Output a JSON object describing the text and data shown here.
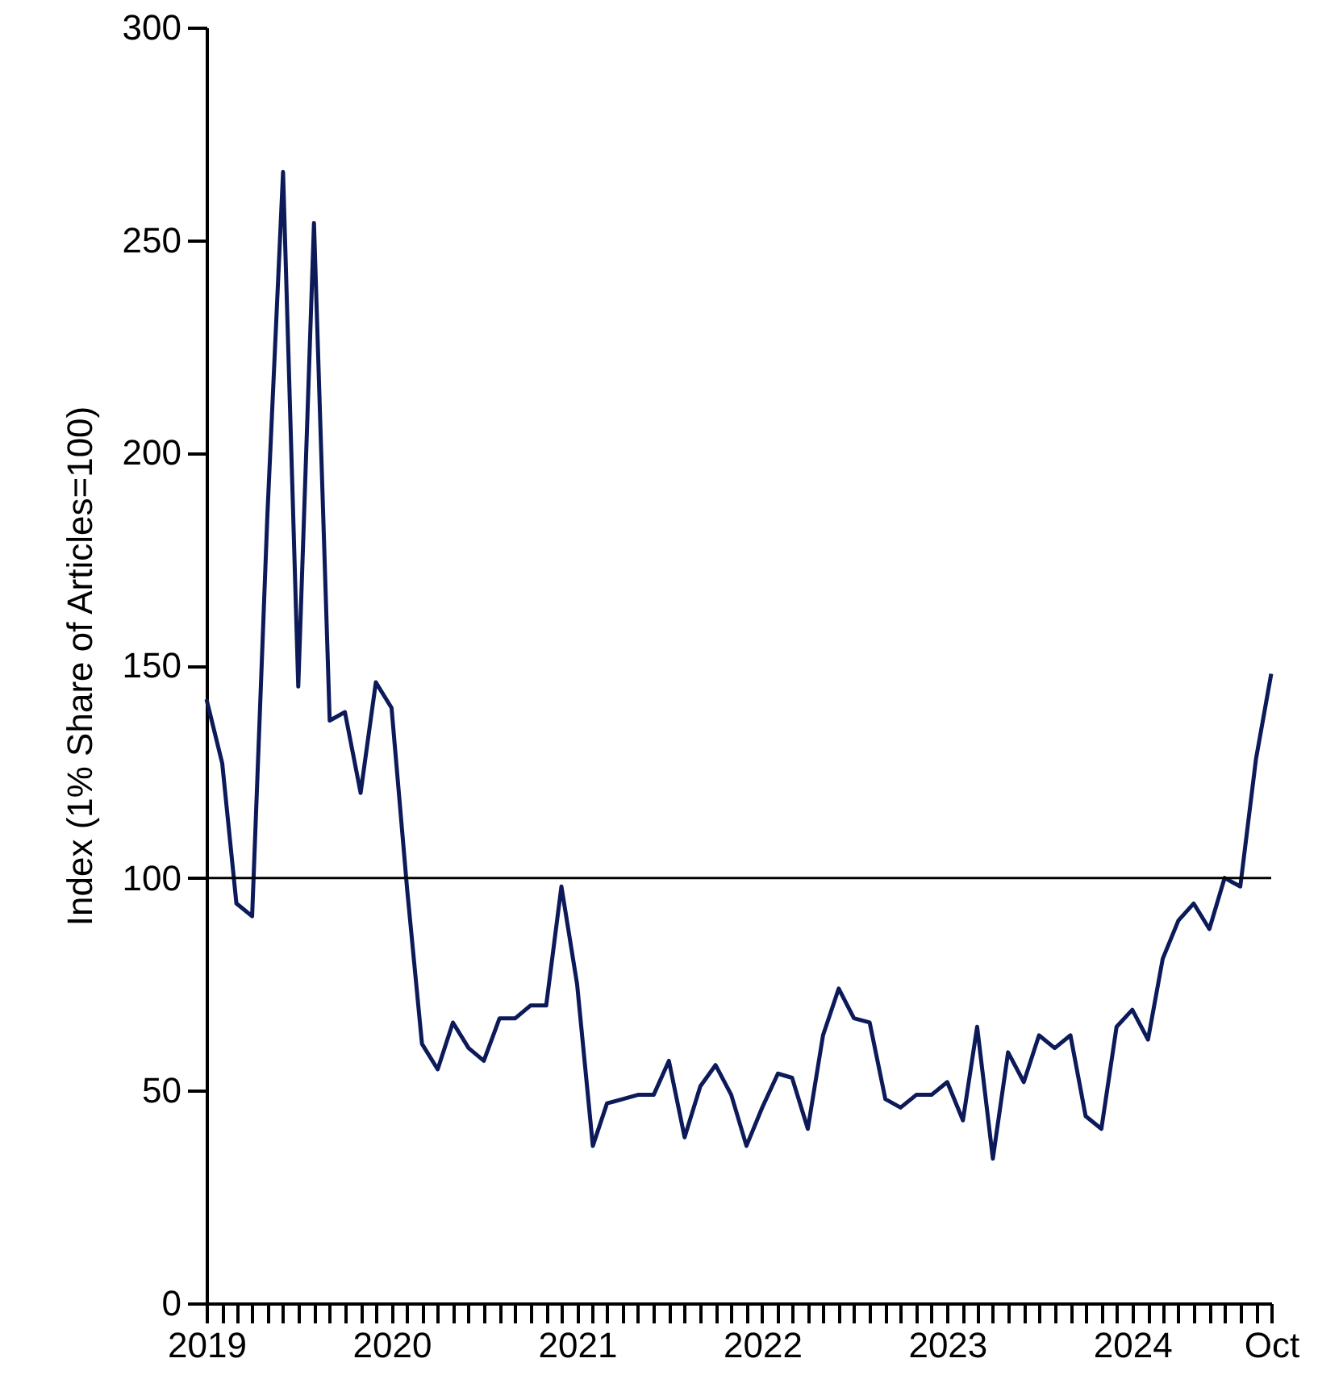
{
  "chart_data": {
    "type": "line",
    "ylabel": "Index (1% Share of Articles=100)",
    "x": [
      "2019-01",
      "2019-02",
      "2019-03",
      "2019-04",
      "2019-05",
      "2019-06",
      "2019-07",
      "2019-08",
      "2019-09",
      "2019-10",
      "2019-11",
      "2019-12",
      "2020-01",
      "2020-02",
      "2020-03",
      "2020-04",
      "2020-05",
      "2020-06",
      "2020-07",
      "2020-08",
      "2020-09",
      "2020-10",
      "2020-11",
      "2020-12",
      "2021-01",
      "2021-02",
      "2021-03",
      "2021-04",
      "2021-05",
      "2021-06",
      "2021-07",
      "2021-08",
      "2021-09",
      "2021-10",
      "2021-11",
      "2021-12",
      "2022-01",
      "2022-02",
      "2022-03",
      "2022-04",
      "2022-05",
      "2022-06",
      "2022-07",
      "2022-08",
      "2022-09",
      "2022-10",
      "2022-11",
      "2022-12",
      "2023-01",
      "2023-02",
      "2023-03",
      "2023-04",
      "2023-05",
      "2023-06",
      "2023-07",
      "2023-08",
      "2023-09",
      "2023-10",
      "2023-11",
      "2023-12",
      "2024-01",
      "2024-02",
      "2024-03",
      "2024-04",
      "2024-05",
      "2024-06",
      "2024-07",
      "2024-08",
      "2024-09",
      "2024-10"
    ],
    "series": [
      {
        "color": "#0c1a5a",
        "values": [
          142,
          127,
          94,
          91,
          185,
          266,
          145,
          254,
          137,
          139,
          120,
          146,
          140,
          97,
          61,
          55,
          66,
          60,
          57,
          67,
          67,
          70,
          70,
          98,
          75,
          37,
          47,
          48,
          49,
          49,
          57,
          39,
          51,
          56,
          49,
          37,
          46,
          54,
          53,
          41,
          63,
          74,
          67,
          66,
          48,
          46,
          49,
          49,
          52,
          43,
          65,
          34,
          59,
          52,
          63,
          60,
          63,
          44,
          41,
          65,
          69,
          62,
          81,
          90,
          94,
          88,
          100,
          98,
          128,
          148
        ]
      }
    ],
    "xlim": [
      "2019-01",
      "2024-10"
    ],
    "xticks": [
      {
        "value": "2019-01",
        "label": "2019"
      },
      {
        "value": "2019-02",
        "label": null
      },
      {
        "value": "2019-03",
        "label": null
      },
      {
        "value": "2019-04",
        "label": null
      },
      {
        "value": "2019-05",
        "label": null
      },
      {
        "value": "2019-06",
        "label": null
      },
      {
        "value": "2019-07",
        "label": null
      },
      {
        "value": "2019-08",
        "label": null
      },
      {
        "value": "2019-09",
        "label": null
      },
      {
        "value": "2019-10",
        "label": null
      },
      {
        "value": "2019-11",
        "label": null
      },
      {
        "value": "2019-12",
        "label": null
      },
      {
        "value": "2020-01",
        "label": "2020"
      },
      {
        "value": "2020-02",
        "label": null
      },
      {
        "value": "2020-03",
        "label": null
      },
      {
        "value": "2020-04",
        "label": null
      },
      {
        "value": "2020-05",
        "label": null
      },
      {
        "value": "2020-06",
        "label": null
      },
      {
        "value": "2020-07",
        "label": null
      },
      {
        "value": "2020-08",
        "label": null
      },
      {
        "value": "2020-09",
        "label": null
      },
      {
        "value": "2020-10",
        "label": null
      },
      {
        "value": "2020-11",
        "label": null
      },
      {
        "value": "2020-12",
        "label": null
      },
      {
        "value": "2021-01",
        "label": "2021"
      },
      {
        "value": "2021-02",
        "label": null
      },
      {
        "value": "2021-03",
        "label": null
      },
      {
        "value": "2021-04",
        "label": null
      },
      {
        "value": "2021-05",
        "label": null
      },
      {
        "value": "2021-06",
        "label": null
      },
      {
        "value": "2021-07",
        "label": null
      },
      {
        "value": "2021-08",
        "label": null
      },
      {
        "value": "2021-09",
        "label": null
      },
      {
        "value": "2021-10",
        "label": null
      },
      {
        "value": "2021-11",
        "label": null
      },
      {
        "value": "2021-12",
        "label": null
      },
      {
        "value": "2022-01",
        "label": "2022"
      },
      {
        "value": "2022-02",
        "label": null
      },
      {
        "value": "2022-03",
        "label": null
      },
      {
        "value": "2022-04",
        "label": null
      },
      {
        "value": "2022-05",
        "label": null
      },
      {
        "value": "2022-06",
        "label": null
      },
      {
        "value": "2022-07",
        "label": null
      },
      {
        "value": "2022-08",
        "label": null
      },
      {
        "value": "2022-09",
        "label": null
      },
      {
        "value": "2022-10",
        "label": null
      },
      {
        "value": "2022-11",
        "label": null
      },
      {
        "value": "2022-12",
        "label": null
      },
      {
        "value": "2023-01",
        "label": "2023"
      },
      {
        "value": "2023-02",
        "label": null
      },
      {
        "value": "2023-03",
        "label": null
      },
      {
        "value": "2023-04",
        "label": null
      },
      {
        "value": "2023-05",
        "label": null
      },
      {
        "value": "2023-06",
        "label": null
      },
      {
        "value": "2023-07",
        "label": null
      },
      {
        "value": "2023-08",
        "label": null
      },
      {
        "value": "2023-09",
        "label": null
      },
      {
        "value": "2023-10",
        "label": null
      },
      {
        "value": "2023-11",
        "label": null
      },
      {
        "value": "2023-12",
        "label": null
      },
      {
        "value": "2024-01",
        "label": "2024"
      },
      {
        "value": "2024-02",
        "label": null
      },
      {
        "value": "2024-03",
        "label": null
      },
      {
        "value": "2024-04",
        "label": null
      },
      {
        "value": "2024-05",
        "label": null
      },
      {
        "value": "2024-06",
        "label": null
      },
      {
        "value": "2024-07",
        "label": null
      },
      {
        "value": "2024-08",
        "label": null
      },
      {
        "value": "2024-09",
        "label": null
      },
      {
        "value": "2024-10",
        "label": "Oct"
      }
    ],
    "ylim": [
      0,
      300
    ],
    "yticks": [
      0,
      50,
      100,
      150,
      200,
      250,
      300
    ],
    "ref_lines": [
      {
        "axis": "y",
        "value": 100,
        "color": "#000000"
      }
    ],
    "grid": false,
    "marker": "none",
    "line_style": "solid"
  }
}
